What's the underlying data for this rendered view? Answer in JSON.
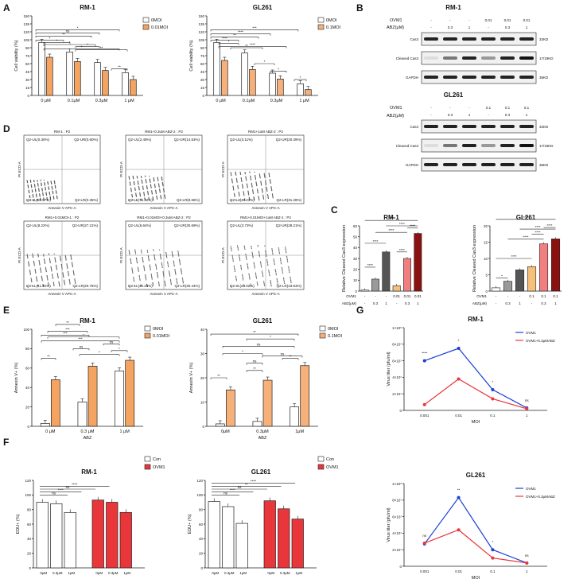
{
  "panels": {
    "A": "A",
    "B": "B",
    "C": "C",
    "D": "D",
    "E": "E",
    "F": "F",
    "G": "G"
  },
  "colors": {
    "orange": "#F4A460",
    "orange2": "#F6B07A",
    "red": "#E8363B",
    "blue": "#1C3FD6",
    "grayDark": "#555555",
    "grayMid": "#7A7A7A",
    "pink": "#F08080",
    "darkred": "#8B1010",
    "tan": "#F5C07A"
  },
  "chart_data": [
    {
      "id": "A1",
      "type": "bar",
      "title": "RM-1",
      "ylabel": "Cell viability (%)",
      "categories": [
        "0 μM",
        "0.1μM",
        "0.3μM",
        "1 μM"
      ],
      "series": [
        {
          "name": "0MOI",
          "values": [
            100,
            82,
            62,
            43
          ]
        },
        {
          "name": "0.01MOI",
          "values": [
            72,
            64,
            47,
            30
          ]
        }
      ],
      "ylim": [
        0,
        150
      ],
      "yticks": [
        "0",
        "15",
        "30",
        "45",
        "60",
        "75",
        "90",
        "105",
        "120",
        "135",
        "150"
      ],
      "sig": [
        "*",
        "**",
        "ns",
        "*",
        "*",
        "*",
        "*",
        "*",
        "**",
        "**"
      ]
    },
    {
      "id": "A2",
      "type": "bar",
      "title": "GL261",
      "ylabel": "Cell viability (%)",
      "categories": [
        "0 μM",
        "0.1μM",
        "0.3μM",
        "1 μM"
      ],
      "series": [
        {
          "name": "0MOI",
          "values": [
            100,
            80,
            42,
            22
          ]
        },
        {
          "name": "0.1MOI",
          "values": [
            66,
            49,
            31,
            11
          ]
        }
      ],
      "ylim": [
        0,
        150
      ],
      "yticks": [
        "0",
        "15",
        "30",
        "45",
        "60",
        "75",
        "90",
        "105",
        "120",
        "135",
        "150"
      ],
      "sig": [
        "****",
        "**",
        "****",
        "***",
        "*",
        "**",
        "****",
        "*",
        "*",
        "*"
      ]
    },
    {
      "id": "C1",
      "type": "bar",
      "title": "RM-1",
      "ylabel": "Relative Cleaved Cas3 expression",
      "categories": [
        "1",
        "2",
        "3",
        "4",
        "5",
        "6"
      ],
      "values": [
        1,
        11,
        36,
        5,
        30,
        53
      ],
      "ylim": [
        0,
        60
      ],
      "yticks": [
        "0",
        "10",
        "20",
        "30",
        "40",
        "50",
        "60"
      ],
      "rows": {
        "OVM1": [
          "-",
          "-",
          "-",
          "0.01",
          "0.01",
          "0.01"
        ],
        "ABZ(μM)": [
          "-",
          "0.3",
          "1",
          "-",
          "0.3",
          "1"
        ]
      },
      "sig": [
        "****",
        "****",
        "****",
        "****",
        "****",
        "****",
        "****"
      ]
    },
    {
      "id": "C2",
      "type": "bar",
      "title": "GL261",
      "ylabel": "Relative Cleaved Cas3 expression",
      "categories": [
        "1",
        "2",
        "3",
        "4",
        "5",
        "6"
      ],
      "values": [
        1,
        3,
        6.5,
        7.5,
        14.5,
        16
      ],
      "ylim": [
        0,
        20
      ],
      "yticks": [
        "0",
        "5",
        "10",
        "15",
        "20"
      ],
      "rows": {
        "OVM1": [
          "-",
          "-",
          "-",
          "0.1",
          "0.1",
          "0.1"
        ],
        "ABZ(μM)": [
          "-",
          "0.3",
          "1",
          "-",
          "0.3",
          "1"
        ]
      },
      "sig": [
        "*",
        "****",
        "****",
        "****",
        "****",
        "****",
        "****"
      ]
    },
    {
      "id": "E1",
      "type": "bar",
      "title": "RM-1",
      "ylabel": "Annexin V+ (%)",
      "xlabel": "ABZ",
      "categories": [
        "0 μM",
        "0.3 μM",
        "1 μM"
      ],
      "series": [
        {
          "name": "0MOI",
          "values": [
            3,
            25,
            57
          ]
        },
        {
          "name": "0.01MOI",
          "values": [
            48,
            62,
            68
          ]
        }
      ],
      "ylim": [
        0,
        100
      ],
      "yticks": [
        "0",
        "20",
        "40",
        "60",
        "80",
        "100"
      ],
      "sig": [
        "**",
        "ns",
        "ns",
        "*",
        "***",
        "**",
        "*",
        "***",
        "***",
        "*"
      ]
    },
    {
      "id": "E2",
      "type": "bar",
      "title": "GL261",
      "ylabel": "Annexin V+ (%)",
      "xlabel": "ABZ",
      "categories": [
        "0μM",
        "0.3μM",
        "1μM"
      ],
      "series": [
        {
          "name": "0MOI",
          "values": [
            1,
            2,
            8
          ]
        },
        {
          "name": "0.1MOI",
          "values": [
            15,
            19,
            25
          ]
        }
      ],
      "ylim": [
        0,
        40
      ],
      "yticks": [
        "0",
        "10",
        "20",
        "30",
        "40"
      ],
      "sig": [
        "**",
        "*",
        "ns",
        "ns",
        "*",
        "ns",
        "**",
        "**",
        "**"
      ]
    },
    {
      "id": "F1",
      "type": "bar",
      "title": "RM-1",
      "ylabel": "EDU+ (%)",
      "groups": [
        {
          "name": "Con",
          "categories": [
            "0μM",
            "0.3μM",
            "1μM"
          ],
          "values": [
            90,
            88,
            76
          ]
        },
        {
          "name": "OVM1",
          "categories": [
            "0μM",
            "0.3μM",
            "1μM"
          ],
          "values": [
            93,
            90,
            76
          ]
        }
      ],
      "ylim": [
        0,
        120
      ],
      "yticks": [
        "0",
        "20",
        "40",
        "60",
        "80",
        "100",
        "120"
      ],
      "sig": [
        "ns",
        "****",
        "ns",
        "****"
      ]
    },
    {
      "id": "F2",
      "type": "bar",
      "title": "GL261",
      "ylabel": "EDU+ (%)",
      "groups": [
        {
          "name": "Con",
          "categories": [
            "0μM",
            "0.3μM",
            "1μM"
          ],
          "values": [
            91,
            84,
            61
          ]
        },
        {
          "name": "OVM1",
          "categories": [
            "0μM",
            "0.3μM",
            "1μM"
          ],
          "values": [
            92,
            81,
            67
          ]
        }
      ],
      "ylim": [
        0,
        120
      ],
      "yticks": [
        "0",
        "20",
        "40",
        "60",
        "80",
        "100",
        "120"
      ],
      "sig": [
        "ns",
        "****",
        "ns",
        "**",
        "****"
      ]
    },
    {
      "id": "G1",
      "type": "line",
      "title": "RM-1",
      "ylabel": "Virus titer (pfu/ml)",
      "xlabel": "MOI",
      "x": [
        "0.001",
        "0.01",
        "0.1",
        "1"
      ],
      "series": [
        {
          "name": "OVM1",
          "values": [
            60000000.0,
            75000000.0,
            25000000.0,
            3000000.0
          ]
        },
        {
          "name": "OVM1+0.3μMABZ",
          "values": [
            7000000.0,
            38000000.0,
            14000000.0,
            2000000.0
          ]
        }
      ],
      "ylim": [
        0,
        100000000.0
      ],
      "yticks": [
        "0",
        "2×10⁷",
        "4×10⁷",
        "6×10⁷",
        "8×10⁷",
        "1×10⁸"
      ],
      "sig": [
        "****",
        "*",
        "*",
        "ns"
      ]
    },
    {
      "id": "G2",
      "type": "line",
      "title": "GL261",
      "ylabel": "Virus titer (pfu/ml)",
      "xlabel": "MOI",
      "x": [
        "0.001",
        "0.01",
        "0.1",
        "1"
      ],
      "series": [
        {
          "name": "OVM1",
          "values": [
            27000000.0,
            83000000.0,
            20000000.0,
            4000000.0
          ]
        },
        {
          "name": "OVM1+0.3μMABZ",
          "values": [
            28000000.0,
            44000000.0,
            10000000.0,
            4000000.0
          ]
        }
      ],
      "ylim": [
        0,
        100000000.0
      ],
      "yticks": [
        "0",
        "2×10⁷",
        "4×10⁷",
        "6×10⁷",
        "8×10⁷",
        "1×10⁸"
      ],
      "sig": [
        "ns",
        "**",
        "*",
        "ns"
      ]
    }
  ],
  "blots": {
    "rm1": {
      "title": "RM-1",
      "ovm1": [
        "-",
        "-",
        "-",
        "0.01",
        "0.01",
        "0.01"
      ],
      "abz": [
        "-",
        "0.3",
        "1",
        "-",
        "0.3",
        "1"
      ],
      "rows": [
        {
          "label": "Cas3",
          "kd": "32KD"
        },
        {
          "label": "Cleaved Cas3",
          "kd": "17/19KD"
        },
        {
          "label": "GAPDH",
          "kd": "36KD"
        }
      ],
      "rowlabels": [
        "OVM1",
        "ABZ(μM)"
      ]
    },
    "gl261": {
      "title": "GL261",
      "ovm1": [
        "-",
        "-",
        "-",
        "0.1",
        "0.1",
        "0.1"
      ],
      "abz": [
        "-",
        "0.3",
        "1",
        "-",
        "0.3",
        "1"
      ],
      "rows": [
        {
          "label": "Cas3",
          "kd": "32KD"
        },
        {
          "label": "Cleaved Cas3",
          "kd": "17/19KD"
        },
        {
          "label": "GAPDH",
          "kd": "36KD"
        }
      ],
      "rowlabels": [
        "OVM1",
        "ABZ(μM)"
      ]
    }
  },
  "flow": {
    "plots": [
      {
        "title": "RM-1 : P2",
        "ul": "Q2-UL(0.30%)",
        "ur": "Q2-UR(0.60%)",
        "ll": "Q2-LL(98.57%)",
        "lr": "Q2-LR(0.36%)"
      },
      {
        "title": "RM1+0.3uM ABZ-2 : P2",
        "ul": "Q2-UL(2.49%)",
        "ur": "Q2-UR(14.53%)",
        "ll": "Q2-LL(72.32%)",
        "lr": "Q2-LR(8.66%)"
      },
      {
        "title": "RM1+1uM ABZ-2 : P2",
        "ul": "Q2-UL(3.11%)",
        "ur": "Q2-UR(20.39%)",
        "ll": "Q2-LL(45.23%)",
        "lr": "Q2-LR(31.28%)"
      },
      {
        "title": "RM1+0.01MOI-1 : P2",
        "ul": "Q2-UL(8.22%)",
        "ur": "Q2-UR(27.21%)",
        "ll": "Q2-LL(41.81%)",
        "lr": "Q2-LR(20.76%)"
      },
      {
        "title": "RM1+0.01MOI+0.3uM ABZ-2 : P2",
        "ul": "Q2-UL(6.64%)",
        "ur": "Q2-UR(30.69%)",
        "ll": "Q2-LL(30.23%)",
        "lr": "Q2-LR(30.44%)"
      },
      {
        "title": "RM1+0.01MOI+1uM ABZ-1 : P2",
        "ul": "Q2-UL(3.73%)",
        "ur": "Q2-UR(28.21%)",
        "ll": "Q2-LL(26.02%)",
        "lr": "Q2-LR(43.63%)"
      }
    ],
    "xlabel": "Annexin V APC-A",
    "ylabel": "PI ECD-A"
  }
}
